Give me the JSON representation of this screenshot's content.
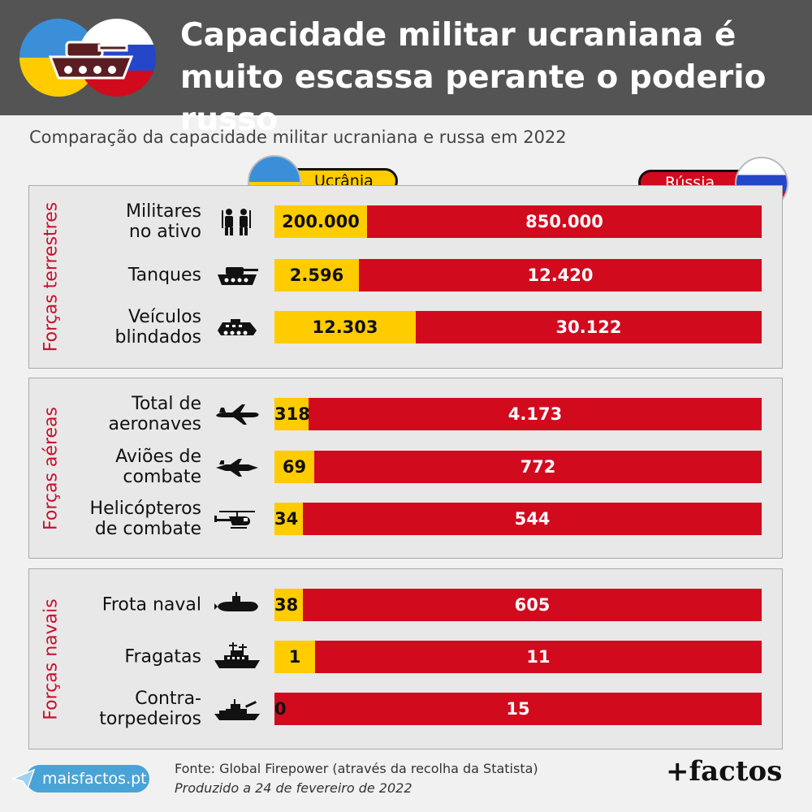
{
  "header": {
    "title": "Capacidade militar ucraniana é muito escassa perante o poderio russo",
    "logo_icon": "tank-flags-icon"
  },
  "subtitle": "Comparação da capacidade militar ucraniana e russa em 2022",
  "legend": {
    "ukraine": "Ucrânia",
    "russia": "Rússia"
  },
  "colors": {
    "ukraine": "#ffcc00",
    "russia": "#d20a1e",
    "section_label": "#c8102e",
    "header_bg": "#545454"
  },
  "chart_data": {
    "type": "bar",
    "orientation": "horizontal",
    "stacked": "percent",
    "series": [
      {
        "name": "Ucrânia",
        "color": "#ffcc00"
      },
      {
        "name": "Rússia",
        "color": "#d20a1e"
      }
    ],
    "sections": [
      {
        "label": "Forças terrestres",
        "rows": [
          {
            "label": "Militares\nno ativo",
            "icon": "soldiers-icon",
            "ukraine": 200000,
            "russia": 850000,
            "ukraine_text": "200.000",
            "russia_text": "850.000"
          },
          {
            "label": "Tanques",
            "icon": "tank-icon",
            "ukraine": 2596,
            "russia": 12420,
            "ukraine_text": "2.596",
            "russia_text": "12.420"
          },
          {
            "label": "Veículos\nblindados",
            "icon": "armored-vehicle-icon",
            "ukraine": 12303,
            "russia": 30122,
            "ukraine_text": "12.303",
            "russia_text": "30.122"
          }
        ]
      },
      {
        "label": "Forças aéreas",
        "rows": [
          {
            "label": "Total de\naeronaves",
            "icon": "airplane-icon",
            "ukraine": 318,
            "russia": 4173,
            "ukraine_text": "318",
            "russia_text": "4.173"
          },
          {
            "label": "Aviões de\ncombate",
            "icon": "fighter-jet-icon",
            "ukraine": 69,
            "russia": 772,
            "ukraine_text": "69",
            "russia_text": "772"
          },
          {
            "label": "Helicópteros\nde combate",
            "icon": "helicopter-icon",
            "ukraine": 34,
            "russia": 544,
            "ukraine_text": "34",
            "russia_text": "544"
          }
        ]
      },
      {
        "label": "Forças navais",
        "rows": [
          {
            "label": "Frota naval",
            "icon": "submarine-icon",
            "ukraine": 38,
            "russia": 605,
            "ukraine_text": "38",
            "russia_text": "605"
          },
          {
            "label": "Fragatas",
            "icon": "frigate-icon",
            "ukraine": 1,
            "russia": 11,
            "ukraine_text": "1",
            "russia_text": "11"
          },
          {
            "label": "Contra-\ntorpedeiros",
            "icon": "destroyer-icon",
            "ukraine": 0,
            "russia": 15,
            "ukraine_text": "0",
            "russia_text": "15"
          }
        ]
      }
    ]
  },
  "footer": {
    "site": "maisfactos.pt",
    "source": "Fonte: Global Firepower (através da recolha da Statista)",
    "produced": "Produzido a 24 de fevereiro de 2022",
    "brand": "+factos",
    "site_icon": "paper-plane-icon"
  }
}
